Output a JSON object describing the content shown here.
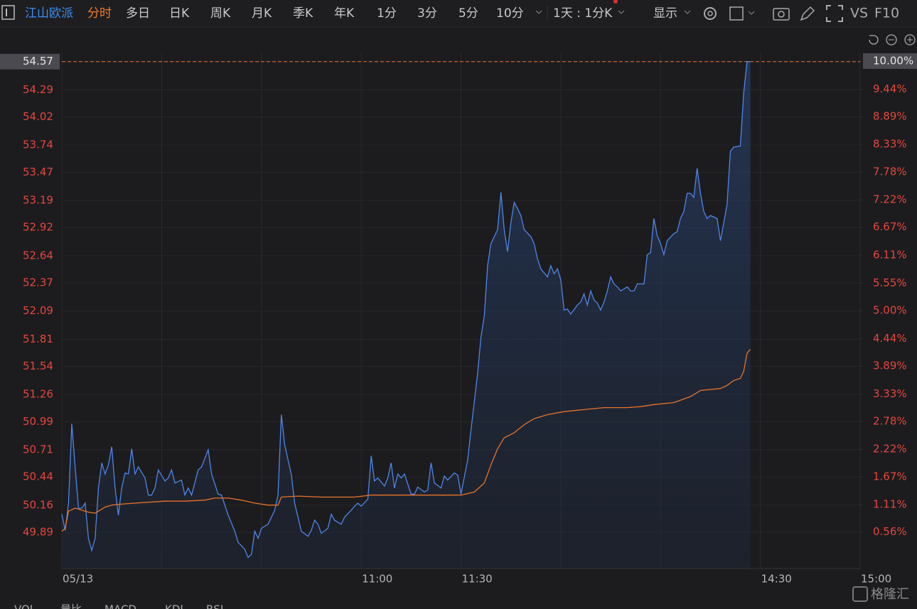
{
  "toolbar": {
    "stock": "江山欧派",
    "tabs": [
      "分时",
      "多日",
      "日K",
      "周K",
      "月K",
      "季K",
      "年K",
      "1分",
      "3分",
      "5分",
      "10分"
    ],
    "active_tab": 0,
    "period": "1天 : 1分K",
    "display": "显示",
    "vs": "VS",
    "f10": "F10"
  },
  "chart_data": {
    "type": "line",
    "xlim": [
      "09:30",
      "15:00"
    ],
    "break": [
      "11:30",
      "13:00"
    ],
    "xticks": [
      {
        "value": "09:30",
        "label": "05/13"
      },
      {
        "value": "10:00",
        "label": null
      },
      {
        "value": "10:30",
        "label": null
      },
      "11:00",
      "11:30",
      {
        "value": "13:30",
        "label": null
      },
      {
        "value": "14:00",
        "label": null
      },
      "14:30",
      "15:00"
    ],
    "ylim": [
      49.53,
      54.66
    ],
    "yticks": [
      54.57,
      54.29,
      54.02,
      53.74,
      53.47,
      53.19,
      52.92,
      52.64,
      52.37,
      52.09,
      51.81,
      51.54,
      51.26,
      50.99,
      50.71,
      50.44,
      50.16,
      49.89
    ],
    "y2lim": [
      -0.17,
      10.17
    ],
    "y2ticks": [
      {
        "value": 10,
        "label": "10.00%"
      },
      {
        "value": 9.44,
        "label": "9.44%"
      },
      {
        "value": 8.89,
        "label": "8.89%"
      },
      {
        "value": 8.33,
        "label": "8.33%"
      },
      {
        "value": 7.78,
        "label": "7.78%"
      },
      {
        "value": 7.22,
        "label": "7.22%"
      },
      {
        "value": 6.67,
        "label": "6.67%"
      },
      {
        "value": 6.11,
        "label": "6.11%"
      },
      {
        "value": 5.55,
        "label": "5.55%"
      },
      {
        "value": 5,
        "label": "5.00%"
      },
      {
        "value": 4.44,
        "label": "4.44%"
      },
      {
        "value": 3.89,
        "label": "3.89%"
      },
      {
        "value": 3.33,
        "label": "3.33%"
      },
      {
        "value": 2.78,
        "label": "2.78%"
      },
      {
        "value": 2.22,
        "label": "2.22%"
      },
      {
        "value": 1.67,
        "label": "1.67%"
      },
      {
        "value": 1.11,
        "label": "1.11%"
      },
      {
        "value": 0.56,
        "label": "0.56%"
      }
    ],
    "hline": 54.57,
    "grid": true,
    "series": [
      {
        "color": "#4f86e8",
        "fill": true,
        "x": [
          "09:30",
          "09:31",
          "09:32",
          "09:33",
          "09:34",
          "09:35",
          "09:36",
          "09:37",
          "09:38",
          "09:39",
          "09:40",
          "09:41",
          "09:42",
          "09:43",
          "09:44",
          "09:45",
          "09:46",
          "09:47",
          "09:48",
          "09:49",
          "09:50",
          "09:51",
          "09:52",
          "09:53",
          "09:55",
          "09:56",
          "09:57",
          "09:58",
          "09:59",
          "10:01",
          "10:02",
          "10:03",
          "10:04",
          "10:06",
          "10:07",
          "10:08",
          "10:09",
          "10:11",
          "10:12",
          "10:14",
          "10:15",
          "10:17",
          "10:18",
          "10:20",
          "10:22",
          "10:23",
          "10:25",
          "10:26",
          "10:27",
          "10:28",
          "10:29",
          "10:30",
          "10:32",
          "10:33",
          "10:34",
          "10:35",
          "10:36",
          "10:37",
          "10:39",
          "10:40",
          "10:41",
          "10:42",
          "10:44",
          "10:45",
          "10:46",
          "10:47",
          "10:48",
          "10:50",
          "10:51",
          "10:52",
          "10:54",
          "10:55",
          "10:57",
          "10:58",
          "10:59",
          "11:00",
          "11:02",
          "11:03",
          "11:04",
          "11:05",
          "11:07",
          "11:08",
          "11:09",
          "11:10",
          "11:11",
          "11:12",
          "11:13",
          "11:15",
          "11:16",
          "11:17",
          "11:19",
          "11:20",
          "11:21",
          "11:22",
          "11:24",
          "11:25",
          "11:26",
          "11:28",
          "11:29",
          "11:30",
          "13:02",
          "13:03",
          "13:05",
          "13:06",
          "13:07",
          "13:08",
          "13:09",
          "13:10",
          "13:11",
          "13:12",
          "13:13",
          "13:14",
          "13:15",
          "13:16",
          "13:17",
          "13:18",
          "13:19",
          "13:21",
          "13:22",
          "13:23",
          "13:24",
          "13:26",
          "13:27",
          "13:28",
          "13:29",
          "13:30",
          "13:31",
          "13:32",
          "13:33",
          "13:35",
          "13:36",
          "13:37",
          "13:38",
          "13:39",
          "13:40",
          "13:41",
          "13:42",
          "13:43",
          "13:44",
          "13:45",
          "13:46",
          "13:47",
          "13:48",
          "13:50",
          "13:51",
          "13:52",
          "13:53",
          "13:55",
          "13:56",
          "13:57",
          "13:58",
          "13:59",
          "14:00",
          "14:01",
          "14:02",
          "14:04",
          "14:05",
          "14:06",
          "14:07",
          "14:08",
          "14:09",
          "14:10",
          "14:11",
          "14:12",
          "14:13",
          "14:14",
          "14:15",
          "14:17",
          "14:18",
          "14:19",
          "14:20",
          "14:21",
          "14:22",
          "14:24",
          "14:25",
          "14:26",
          "14:27"
        ],
        "values": [
          50.07,
          49.91,
          50.18,
          50.97,
          50.54,
          50.13,
          50.13,
          50.18,
          49.83,
          49.71,
          49.83,
          50.33,
          50.58,
          50.47,
          50.56,
          50.74,
          50.33,
          50.06,
          50.33,
          50.48,
          50.47,
          50.72,
          50.47,
          50.54,
          50.43,
          50.26,
          50.26,
          50.33,
          50.51,
          50.4,
          50.43,
          50.51,
          50.38,
          50.41,
          50.26,
          50.33,
          50.26,
          50.51,
          50.54,
          50.71,
          50.47,
          50.27,
          50.26,
          50.06,
          49.9,
          49.79,
          49.72,
          49.64,
          49.67,
          49.9,
          49.83,
          49.93,
          49.97,
          50.04,
          50.11,
          50.26,
          51.06,
          50.76,
          50.46,
          50.18,
          50.04,
          49.9,
          49.85,
          49.91,
          50.01,
          49.97,
          49.88,
          49.93,
          50.07,
          50.01,
          49.97,
          50.04,
          50.11,
          50.15,
          50.18,
          50.15,
          50.22,
          50.65,
          50.4,
          50.43,
          50.35,
          50.43,
          50.58,
          50.33,
          50.47,
          50.43,
          50.47,
          50.27,
          50.27,
          50.34,
          50.29,
          50.31,
          50.58,
          50.38,
          50.33,
          50.45,
          50.41,
          50.48,
          50.46,
          50.27,
          50.61,
          50.9,
          51.47,
          51.83,
          52.04,
          52.54,
          52.76,
          52.83,
          52.9,
          53.27,
          52.9,
          52.68,
          52.97,
          53.17,
          53.11,
          53.04,
          52.9,
          52.83,
          52.76,
          52.61,
          52.51,
          52.43,
          52.54,
          52.46,
          52.51,
          52.4,
          52.1,
          52.11,
          52.06,
          52.15,
          52.18,
          52.26,
          52.15,
          52.29,
          52.2,
          52.17,
          52.1,
          52.18,
          52.29,
          52.43,
          52.36,
          52.33,
          52.29,
          52.33,
          52.29,
          52.29,
          52.36,
          52.36,
          52.65,
          52.67,
          53.01,
          52.84,
          52.76,
          52.65,
          52.79,
          52.86,
          52.88,
          53.01,
          53.08,
          53.26,
          53.26,
          53.22,
          53.51,
          53.26,
          53.08,
          53.01,
          53.04,
          53.01,
          52.79,
          52.97,
          53.15,
          53.68,
          53.72,
          53.73,
          54.26,
          54.57,
          54.57
        ]
      },
      {
        "color": "#e8732a",
        "fill": false,
        "x": [
          "09:30",
          "09:31",
          "09:32",
          "09:34",
          "09:36",
          "09:38",
          "09:40",
          "09:41",
          "09:43",
          "09:45",
          "09:48",
          "09:52",
          "10:01",
          "10:07",
          "10:13",
          "10:16",
          "10:20",
          "10:24",
          "10:28",
          "10:32",
          "10:35",
          "10:36",
          "10:41",
          "10:48",
          "10:58",
          "11:03",
          "11:20",
          "11:30",
          "13:04",
          "13:07",
          "13:09",
          "13:11",
          "13:13",
          "13:16",
          "13:19",
          "13:22",
          "13:26",
          "13:31",
          "13:37",
          "13:43",
          "13:50",
          "13:54",
          "13:58",
          "14:04",
          "14:09",
          "14:12",
          "14:18",
          "14:20",
          "14:22",
          "14:24",
          "14:25",
          "14:26",
          "14:27"
        ],
        "values": [
          49.9,
          49.93,
          50.1,
          50.13,
          50.11,
          50.09,
          50.08,
          50.1,
          50.14,
          50.16,
          50.17,
          50.18,
          50.2,
          50.2,
          50.21,
          50.23,
          50.23,
          50.21,
          50.18,
          50.16,
          50.16,
          50.24,
          50.25,
          50.24,
          50.24,
          50.26,
          50.26,
          50.26,
          50.29,
          50.38,
          50.56,
          50.72,
          50.83,
          50.88,
          50.96,
          51.02,
          51.06,
          51.09,
          51.11,
          51.13,
          51.13,
          51.14,
          51.16,
          51.18,
          51.24,
          51.3,
          51.32,
          51.35,
          51.4,
          51.42,
          51.49,
          51.67,
          51.71
        ]
      }
    ]
  },
  "indicator_tabs": [
    "VOL",
    "量比",
    "MACD",
    "KDJ",
    "RSI"
  ],
  "watermark": "格隆汇"
}
